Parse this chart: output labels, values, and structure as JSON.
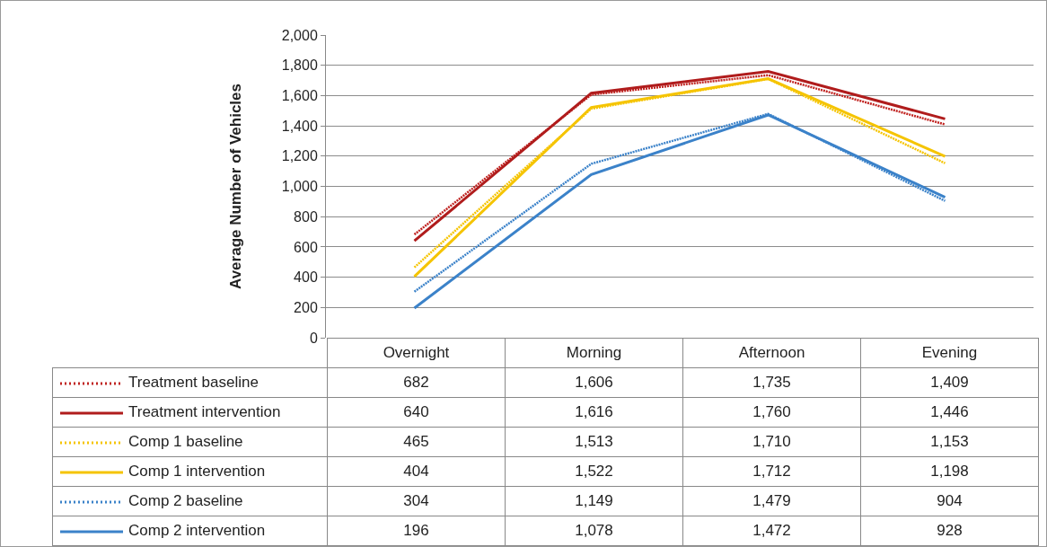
{
  "chart_data": {
    "type": "line",
    "ylabel": "Average Number of Vehicles",
    "categories": [
      "Overnight",
      "Morning",
      "Afternoon",
      "Evening"
    ],
    "series": [
      {
        "name": "Treatment baseline",
        "color": "#c0221f",
        "line_style": "dotted",
        "values": [
          682,
          1606,
          1735,
          1409
        ],
        "value_labels": [
          "682",
          "1,606",
          "1,735",
          "1,409"
        ]
      },
      {
        "name": "Treatment intervention",
        "color": "#b01c1c",
        "line_style": "solid",
        "values": [
          640,
          1616,
          1760,
          1446
        ],
        "value_labels": [
          "640",
          "1,616",
          "1,760",
          "1,446"
        ]
      },
      {
        "name": "Comp 1 baseline",
        "color": "#f5c400",
        "line_style": "dotted",
        "values": [
          465,
          1513,
          1710,
          1153
        ],
        "value_labels": [
          "465",
          "1,513",
          "1,710",
          "1,153"
        ]
      },
      {
        "name": "Comp 1 intervention",
        "color": "#f5c400",
        "line_style": "solid",
        "values": [
          404,
          1522,
          1712,
          1198
        ],
        "value_labels": [
          "404",
          "1,522",
          "1,712",
          "1,198"
        ]
      },
      {
        "name": "Comp 2 baseline",
        "color": "#3b82c9",
        "line_style": "dotted",
        "values": [
          304,
          1149,
          1479,
          904
        ],
        "value_labels": [
          "304",
          "1,149",
          "1,479",
          "904"
        ]
      },
      {
        "name": "Comp 2 intervention",
        "color": "#3b82c9",
        "line_style": "solid",
        "values": [
          196,
          1078,
          1472,
          928
        ],
        "value_labels": [
          "196",
          "1,078",
          "1,472",
          "928"
        ]
      }
    ],
    "ylim": [
      0,
      2000
    ],
    "yticks": [
      0,
      200,
      400,
      600,
      800,
      {
        "value": 1000,
        "label": "1,000"
      },
      {
        "value": 1200,
        "label": "1,200"
      },
      {
        "value": 1400,
        "label": "1,400"
      },
      {
        "value": 1600,
        "label": "1,600"
      },
      {
        "value": 1800,
        "label": "1,800"
      },
      {
        "value": 2000,
        "label": "2,000"
      }
    ],
    "grid": "y",
    "legend": "bottom left",
    "marker": "none"
  }
}
